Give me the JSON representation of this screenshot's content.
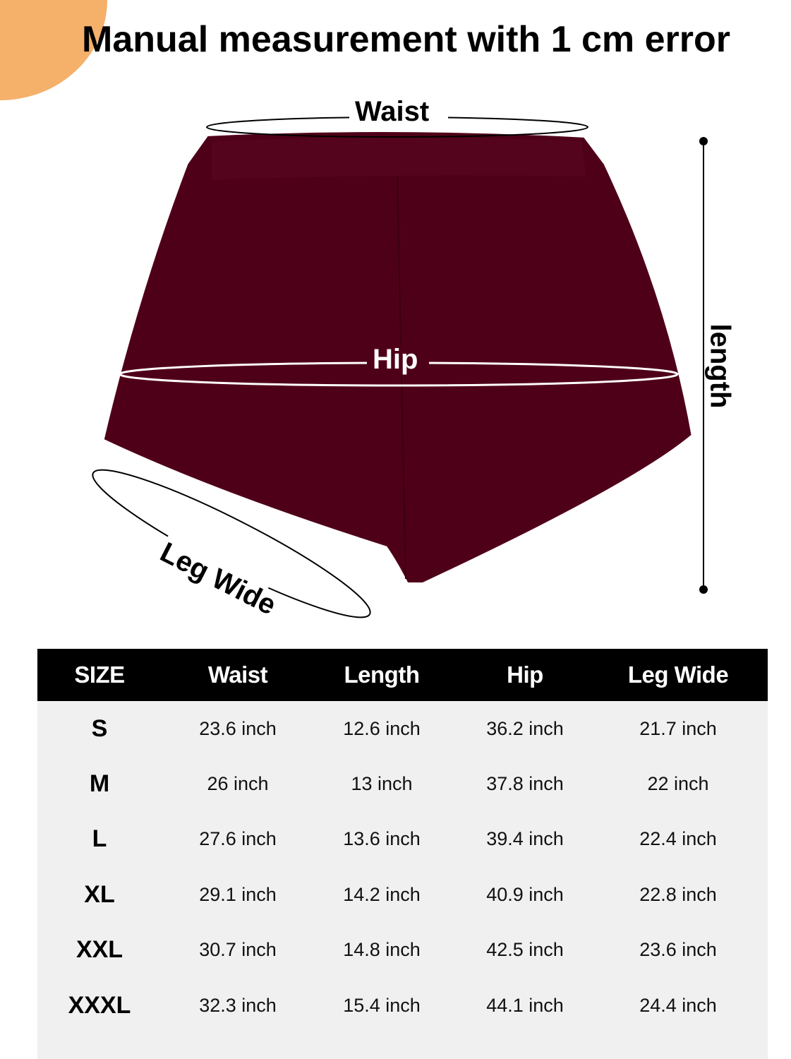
{
  "title": "Manual measurement with 1 cm error",
  "diagram": {
    "labels": {
      "waist": "Waist",
      "hip": "Hip",
      "length": "length",
      "leg_wide": "Leg Wide"
    },
    "colors": {
      "shorts": "#4f0019",
      "trim": "#ffffff",
      "accent_blob": "#f5b06a"
    }
  },
  "size_table": {
    "headers": [
      "SIZE",
      "Waist",
      "Length",
      "Hip",
      "Leg Wide"
    ],
    "rows": [
      [
        "S",
        "23.6 inch",
        "12.6 inch",
        "36.2 inch",
        "21.7 inch"
      ],
      [
        "M",
        "26 inch",
        "13 inch",
        "37.8 inch",
        "22 inch"
      ],
      [
        "L",
        "27.6 inch",
        "13.6 inch",
        "39.4 inch",
        "22.4 inch"
      ],
      [
        "XL",
        "29.1 inch",
        "14.2 inch",
        "40.9 inch",
        "22.8 inch"
      ],
      [
        "XXL",
        "30.7 inch",
        "14.8 inch",
        "42.5 inch",
        "23.6 inch"
      ],
      [
        "XXXL",
        "32.3 inch",
        "15.4 inch",
        "44.1 inch",
        "24.4 inch"
      ]
    ]
  }
}
